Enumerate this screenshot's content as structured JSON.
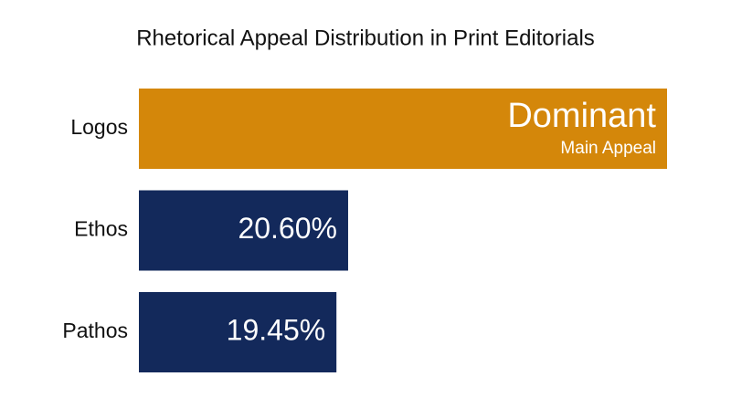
{
  "chart_data": {
    "type": "hbar",
    "title": "Rhetorical Appeal Distribution in Print Editorials",
    "categories": [
      "Logos",
      "Ethos",
      "Pathos"
    ],
    "values": [
      52,
      20.6,
      19.45
    ],
    "value_labels": [
      "Dominant",
      "20.60%",
      "19.45%"
    ],
    "annotation": "Main Appeal",
    "colors": [
      "#d4870a",
      "#13295b",
      "#13295b"
    ]
  }
}
